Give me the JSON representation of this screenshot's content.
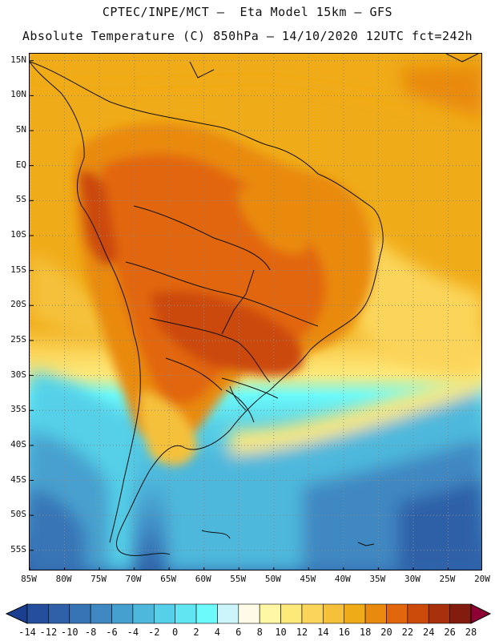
{
  "header": {
    "line1": "CPTEC/INPE/MCT –  Eta Model 15km – GFS",
    "line2": "Absolute Temperature (C) 850hPa – 14/10/2020 12UTC fct=242h"
  },
  "map": {
    "lat_labels": [
      "15N",
      "10N",
      "5N",
      "EQ",
      "5S",
      "10S",
      "15S",
      "20S",
      "25S",
      "30S",
      "35S",
      "40S",
      "45S",
      "50S",
      "55S"
    ],
    "lon_labels": [
      "85W",
      "80W",
      "75W",
      "70W",
      "65W",
      "60W",
      "55W",
      "50W",
      "45W",
      "40W",
      "35W",
      "30W",
      "25W",
      "20W"
    ],
    "grid": "dotted",
    "lat_range": [
      "16N",
      "58S"
    ],
    "lon_range": [
      "85W",
      "20W"
    ]
  },
  "colorbar": {
    "labels": [
      "-14",
      "-12",
      "-10",
      "-8",
      "-6",
      "-4",
      "-2",
      "0",
      "2",
      "4",
      "6",
      "8",
      "10",
      "12",
      "14",
      "16",
      "18",
      "20",
      "22",
      "24",
      "26",
      "28"
    ],
    "colors": [
      "#1b3f90",
      "#254f9c",
      "#2e61a8",
      "#3774b6",
      "#3f88c2",
      "#46a0cf",
      "#4eb8dc",
      "#55d0e8",
      "#5fe6f2",
      "#6cfafa",
      "#ccf4fb",
      "#fffbe6",
      "#fff7a3",
      "#fde97a",
      "#fbd55a",
      "#f5c13a",
      "#f0ab18",
      "#e98a0e",
      "#e2660b",
      "#cc4a0a",
      "#a8300a",
      "#821c0e",
      "#8e0033"
    ]
  }
}
